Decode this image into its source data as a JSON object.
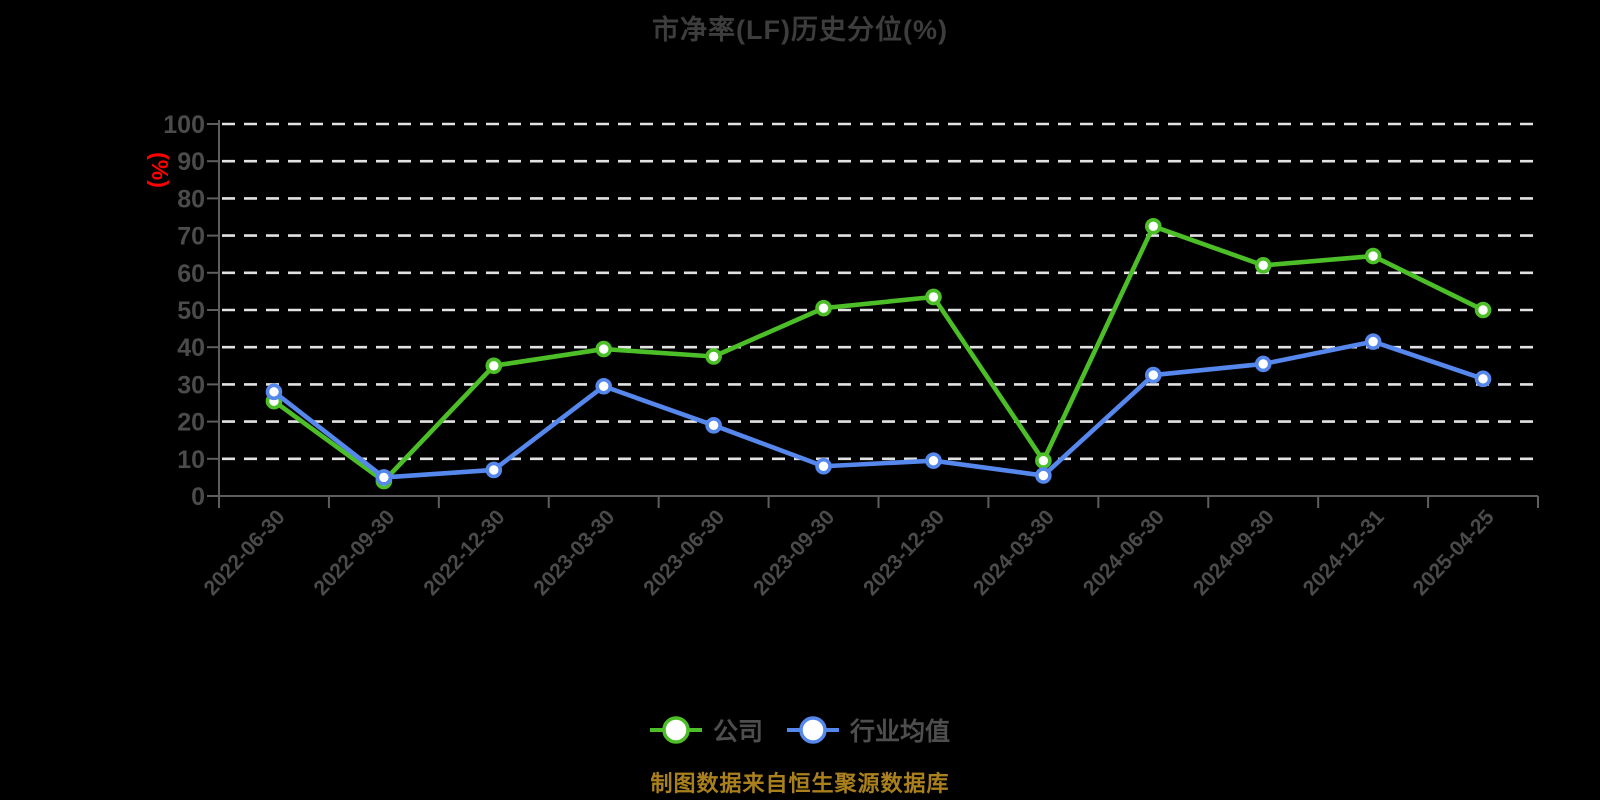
{
  "title": "市净率(LF)历史分位(%)",
  "footer_note": "制图数据来自恒生聚源数据库",
  "chart_data": {
    "type": "line",
    "title": "市净率(LF)历史分位(%)",
    "ylabel": "(%)",
    "ylim": [
      0,
      100
    ],
    "y_step": 10,
    "y_tick_labels": [
      "0",
      "10",
      "20",
      "30",
      "40",
      "50",
      "60",
      "70",
      "80",
      "90",
      "100"
    ],
    "grid": "horizontal-dashed-white",
    "legend_position": "bottom",
    "categories": [
      "2022-06-30",
      "2022-09-30",
      "2022-12-30",
      "2023-03-30",
      "2023-06-30",
      "2023-09-30",
      "2023-12-30",
      "2024-03-30",
      "2024-06-30",
      "2024-09-30",
      "2024-12-31",
      "2025-04-25"
    ],
    "series": [
      {
        "name": "公司",
        "color": "#4cbe27",
        "values": [
          25.5,
          4,
          35,
          39.5,
          37.5,
          50.5,
          53.5,
          9.5,
          72.5,
          62,
          64.5,
          50
        ]
      },
      {
        "name": "行业均值",
        "color": "#5587ec",
        "values": [
          28,
          5,
          7,
          29.5,
          19,
          8,
          9.5,
          5.5,
          32.5,
          35.5,
          41.5,
          31.5
        ]
      }
    ]
  },
  "icons": {
    "legend_marker": "line-through-hollow-circle"
  },
  "colors": {
    "background": "#000000",
    "title_text": "#3d3d3d",
    "axis_line": "#5e5e5e",
    "tick_label": "#4b4b4b",
    "gridline": "#e2e2e2",
    "unit_label": "#ff0000",
    "marker_fill": "#ffffff",
    "legend_text": "#4e4e4e",
    "footer_text": "#a9801d"
  }
}
